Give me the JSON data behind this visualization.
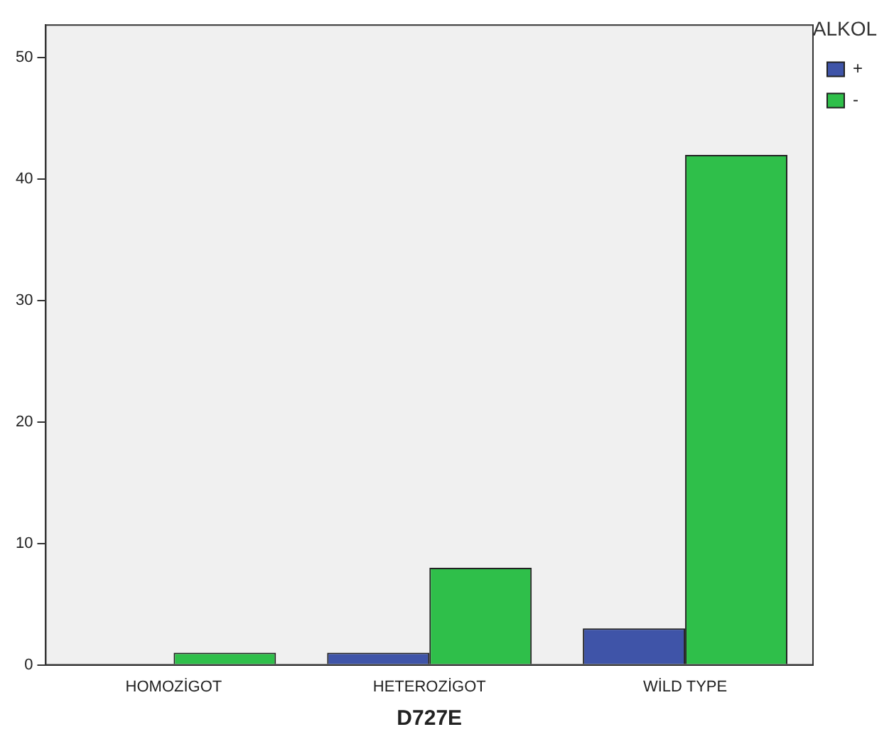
{
  "chart_data": {
    "type": "bar",
    "xlabel": "D727E",
    "legend_title": "ALKOL",
    "categories": [
      "HOMOZİGOT",
      "HETEROZİGOT",
      "WİLD TYPE"
    ],
    "series": [
      {
        "name": "+",
        "color": "#3f54a8",
        "values": [
          0,
          1,
          3
        ]
      },
      {
        "name": "-",
        "color": "#2fbf4a",
        "values": [
          1,
          8,
          42
        ]
      }
    ],
    "ylim": [
      0,
      52.7
    ],
    "yticks": [
      0,
      10,
      20,
      30,
      40,
      50
    ],
    "grid": false,
    "legend": "top right"
  }
}
